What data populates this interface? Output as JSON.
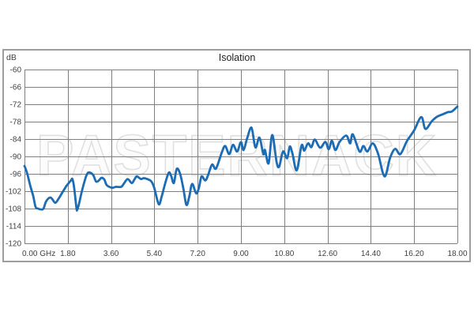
{
  "window": {
    "background": "#ffffff"
  },
  "panel": {
    "border_color": "#9e9e9e"
  },
  "watermark": {
    "text": "PASTERNACK",
    "fill": "#fcfcfc",
    "outline": "#e0e0e0"
  },
  "chart_data": {
    "type": "line",
    "title": "Isolation",
    "ylabel": "dB",
    "xlabel": "",
    "x_unit": "GHz",
    "xlim": [
      0,
      18
    ],
    "ylim": [
      -120,
      -60
    ],
    "grid": true,
    "legend": "none",
    "grid_color": "#808080",
    "text_color": "#3f3f3f",
    "line_color": "#1b6cb5",
    "x_ticks": [
      {
        "value": 0,
        "label": "0.00 GHz"
      },
      {
        "value": 1.8,
        "label": "1.80"
      },
      {
        "value": 3.6,
        "label": "3.60"
      },
      {
        "value": 5.4,
        "label": "5.40"
      },
      {
        "value": 7.2,
        "label": "7.20"
      },
      {
        "value": 9.0,
        "label": "9.00"
      },
      {
        "value": 10.8,
        "label": "10.80"
      },
      {
        "value": 12.6,
        "label": "12.60"
      },
      {
        "value": 14.4,
        "label": "14.40"
      },
      {
        "value": 16.2,
        "label": "16.20"
      },
      {
        "value": 18.0,
        "label": "18.00"
      }
    ],
    "y_ticks": [
      {
        "value": -60,
        "label": "-60"
      },
      {
        "value": -66,
        "label": "-66"
      },
      {
        "value": -72,
        "label": "-72"
      },
      {
        "value": -78,
        "label": "-78"
      },
      {
        "value": -84,
        "label": "-84"
      },
      {
        "value": -90,
        "label": "-90"
      },
      {
        "value": -96,
        "label": "-96"
      },
      {
        "value": -102,
        "label": "-102"
      },
      {
        "value": -108,
        "label": "-108"
      },
      {
        "value": -114,
        "label": "-114"
      },
      {
        "value": -120,
        "label": "-120"
      }
    ],
    "series": [
      {
        "name": "Isolation",
        "points": [
          [
            0.0,
            -93.3
          ],
          [
            0.1,
            -95.5
          ],
          [
            0.24,
            -100.1
          ],
          [
            0.36,
            -103.6
          ],
          [
            0.46,
            -107.4
          ],
          [
            0.56,
            -108.0
          ],
          [
            0.69,
            -108.3
          ],
          [
            0.79,
            -108.0
          ],
          [
            0.9,
            -105.5
          ],
          [
            1.06,
            -104.2
          ],
          [
            1.15,
            -104.7
          ],
          [
            1.28,
            -106.0
          ],
          [
            1.41,
            -104.7
          ],
          [
            1.55,
            -102.8
          ],
          [
            1.71,
            -100.6
          ],
          [
            1.8,
            -99.6
          ],
          [
            1.94,
            -98.2
          ],
          [
            1.99,
            -97.8
          ],
          [
            2.06,
            -100.5
          ],
          [
            2.16,
            -107.8
          ],
          [
            2.19,
            -108.4
          ],
          [
            2.26,
            -106.6
          ],
          [
            2.4,
            -101.5
          ],
          [
            2.54,
            -97.4
          ],
          [
            2.63,
            -95.7
          ],
          [
            2.73,
            -95.6
          ],
          [
            2.86,
            -96.5
          ],
          [
            2.98,
            -98.7
          ],
          [
            3.1,
            -98.2
          ],
          [
            3.2,
            -97.4
          ],
          [
            3.32,
            -98.0
          ],
          [
            3.42,
            -99.9
          ],
          [
            3.64,
            -100.8
          ],
          [
            3.8,
            -100.5
          ],
          [
            4.02,
            -100.5
          ],
          [
            4.14,
            -99.3
          ],
          [
            4.29,
            -97.8
          ],
          [
            4.46,
            -99.2
          ],
          [
            4.57,
            -98.0
          ],
          [
            4.67,
            -96.9
          ],
          [
            4.84,
            -97.8
          ],
          [
            4.95,
            -97.5
          ],
          [
            5.1,
            -97.8
          ],
          [
            5.28,
            -98.7
          ],
          [
            5.4,
            -101.0
          ],
          [
            5.58,
            -106.5
          ],
          [
            5.7,
            -104.0
          ],
          [
            5.85,
            -99.3
          ],
          [
            6.0,
            -95.6
          ],
          [
            6.1,
            -96.8
          ],
          [
            6.21,
            -99.2
          ],
          [
            6.33,
            -94.3
          ],
          [
            6.47,
            -96.0
          ],
          [
            6.6,
            -100.8
          ],
          [
            6.73,
            -106.7
          ],
          [
            6.85,
            -104.0
          ],
          [
            6.97,
            -99.5
          ],
          [
            7.14,
            -102.8
          ],
          [
            7.26,
            -100.6
          ],
          [
            7.36,
            -96.9
          ],
          [
            7.52,
            -98.3
          ],
          [
            7.64,
            -96.3
          ],
          [
            7.8,
            -92.8
          ],
          [
            7.96,
            -94.2
          ],
          [
            8.18,
            -89.2
          ],
          [
            8.34,
            -86.4
          ],
          [
            8.51,
            -89.2
          ],
          [
            8.67,
            -86.0
          ],
          [
            8.84,
            -88.3
          ],
          [
            9.0,
            -85.1
          ],
          [
            9.11,
            -87.8
          ],
          [
            9.26,
            -83.7
          ],
          [
            9.44,
            -80.1
          ],
          [
            9.6,
            -86.9
          ],
          [
            9.77,
            -83.5
          ],
          [
            9.93,
            -89.2
          ],
          [
            10.0,
            -87.8
          ],
          [
            10.15,
            -92.4
          ],
          [
            10.3,
            -82.6
          ],
          [
            10.48,
            -91.9
          ],
          [
            10.59,
            -93.5
          ],
          [
            10.75,
            -88.3
          ],
          [
            10.92,
            -90.6
          ],
          [
            11.03,
            -86.6
          ],
          [
            11.14,
            -89.0
          ],
          [
            11.32,
            -94.8
          ],
          [
            11.52,
            -86.2
          ],
          [
            11.63,
            -88.0
          ],
          [
            11.79,
            -85.5
          ],
          [
            11.93,
            -86.8
          ],
          [
            12.07,
            -84.2
          ],
          [
            12.29,
            -87.0
          ],
          [
            12.51,
            -85.0
          ],
          [
            12.65,
            -87.5
          ],
          [
            12.78,
            -84.6
          ],
          [
            12.93,
            -87.8
          ],
          [
            13.1,
            -85.0
          ],
          [
            13.38,
            -82.8
          ],
          [
            13.54,
            -85.5
          ],
          [
            13.65,
            -82.4
          ],
          [
            13.93,
            -88.3
          ],
          [
            14.09,
            -86.4
          ],
          [
            14.26,
            -88.3
          ],
          [
            14.48,
            -85.5
          ],
          [
            14.7,
            -89.0
          ],
          [
            14.97,
            -96.9
          ],
          [
            15.2,
            -90.5
          ],
          [
            15.41,
            -87.4
          ],
          [
            15.63,
            -89.2
          ],
          [
            15.9,
            -84.7
          ],
          [
            16.2,
            -81.0
          ],
          [
            16.5,
            -76.4
          ],
          [
            16.67,
            -80.5
          ],
          [
            16.94,
            -77.8
          ],
          [
            17.15,
            -76.3
          ],
          [
            17.38,
            -75.5
          ],
          [
            17.61,
            -74.7
          ],
          [
            17.77,
            -74.5
          ],
          [
            18.0,
            -72.8
          ]
        ]
      }
    ]
  }
}
